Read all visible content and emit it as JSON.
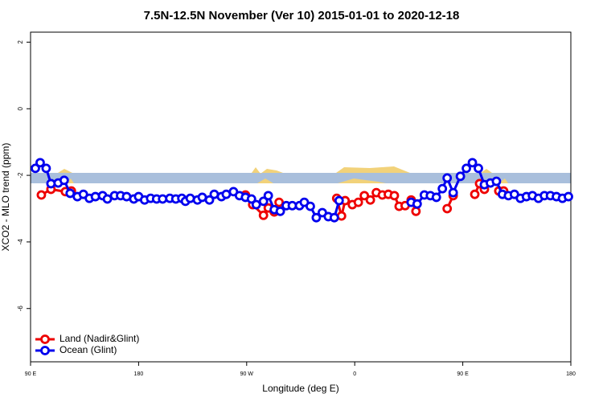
{
  "chart_data": {
    "type": "line",
    "title": "7.5N-12.5N November (Ver 10)   2015-01-01 to 2020-12-18",
    "xlabel": "Longitude (deg E)",
    "ylabel": "XCO2 - MLO trend (ppm)",
    "xlim": [
      90,
      540
    ],
    "ylim": [
      -7.6,
      2.3
    ],
    "xticks": [
      {
        "value": 90,
        "label": "90 E"
      },
      180,
      {
        "value": 270,
        "label": "90 W"
      },
      {
        "value": 360,
        "label": "0"
      },
      {
        "value": 450,
        "label": "90 E"
      },
      {
        "value": 540,
        "label": "180"
      }
    ],
    "yticks": [
      -6,
      -4,
      -2,
      0,
      2
    ],
    "legend": "bottom-left",
    "series": [
      {
        "name": "Land (Nadir&Glint)",
        "color": "#ee0000",
        "x": [
          99,
          107,
          119,
          124,
          null,
          269,
          275,
          284,
          288,
          293,
          297,
          null,
          345,
          349,
          352,
          358,
          363,
          368,
          373,
          378,
          383,
          388,
          393,
          397,
          402,
          407,
          411,
          null,
          437,
          442,
          null,
          460,
          464,
          468,
          null,
          480,
          484
        ],
        "values": [
          -2.59,
          -2.42,
          -2.49,
          -2.47,
          null,
          -2.59,
          -2.88,
          -3.2,
          -2.98,
          -3.1,
          -2.81,
          null,
          -2.69,
          -3.22,
          -2.76,
          -2.88,
          -2.81,
          -2.61,
          -2.74,
          -2.52,
          -2.59,
          -2.57,
          -2.61,
          -2.93,
          -2.91,
          -2.74,
          -3.08,
          null,
          -3.0,
          -2.61,
          null,
          -2.57,
          -2.25,
          -2.42,
          null,
          -2.47,
          -2.47
        ]
      },
      {
        "name": "Ocean (Glint)",
        "color": "#0000ee",
        "x": [
          94,
          98,
          103,
          107,
          113,
          118,
          123,
          129,
          134,
          139,
          144,
          150,
          154,
          160,
          165,
          170,
          176,
          180,
          185,
          190,
          195,
          200,
          206,
          211,
          216,
          219,
          223,
          229,
          233,
          239,
          243,
          249,
          253,
          259,
          264,
          269,
          274,
          278,
          284,
          288,
          293,
          298,
          303,
          308,
          314,
          318,
          323,
          328,
          333,
          338,
          343,
          347,
          null,
          407,
          412,
          418,
          423,
          428,
          433,
          437,
          442,
          448,
          453,
          458,
          463,
          468,
          473,
          478,
          483,
          488,
          493,
          498,
          503,
          508,
          513,
          518,
          523,
          528,
          533,
          538
        ],
        "values": [
          -1.79,
          -1.62,
          -1.79,
          -2.25,
          -2.23,
          -2.15,
          -2.54,
          -2.64,
          -2.57,
          -2.69,
          -2.64,
          -2.61,
          -2.71,
          -2.61,
          -2.61,
          -2.64,
          -2.71,
          -2.64,
          -2.74,
          -2.69,
          -2.71,
          -2.71,
          -2.69,
          -2.71,
          -2.69,
          -2.78,
          -2.69,
          -2.74,
          -2.66,
          -2.74,
          -2.57,
          -2.64,
          -2.57,
          -2.49,
          -2.61,
          -2.66,
          -2.71,
          -2.88,
          -2.78,
          -2.61,
          -3.03,
          -3.08,
          -2.91,
          -2.91,
          -2.91,
          -2.81,
          -2.93,
          -3.27,
          -3.12,
          -3.24,
          -3.27,
          -2.76,
          null,
          -2.81,
          -2.86,
          -2.59,
          -2.61,
          -2.66,
          -2.4,
          -2.08,
          -2.52,
          -2.03,
          -1.79,
          -1.62,
          -1.79,
          -2.28,
          -2.23,
          -2.18,
          -2.57,
          -2.61,
          -2.57,
          -2.69,
          -2.64,
          -2.61,
          -2.69,
          -2.61,
          -2.61,
          -2.64,
          -2.69,
          -2.64
        ]
      }
    ]
  }
}
